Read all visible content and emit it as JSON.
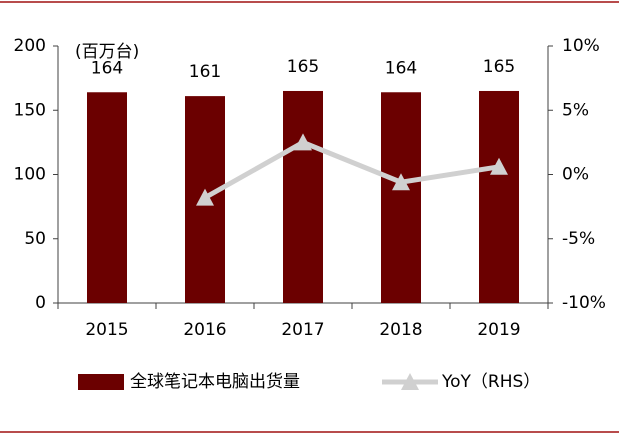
{
  "chart_data": {
    "type": "bar",
    "unit_label": "(百万台)",
    "categories": [
      "2015",
      "2016",
      "2017",
      "2018",
      "2019"
    ],
    "series": [
      {
        "name": "全球笔记本电脑出货量",
        "color": "#6b0000",
        "values": [
          164,
          161,
          165,
          164,
          165
        ]
      },
      {
        "name": "YoY（RHS）",
        "type": "line",
        "axis": "y2",
        "color": "#d0d0d0",
        "values": [
          null,
          -1.8,
          2.5,
          -0.6,
          0.6
        ]
      }
    ],
    "ylim": [
      0,
      200
    ],
    "yticks": [
      0,
      50,
      100,
      150,
      200
    ],
    "y2lim": [
      -10,
      10
    ],
    "y2ticks": [
      {
        "value": -10,
        "label": "-10%"
      },
      {
        "value": -5,
        "label": "-5%"
      },
      {
        "value": 0,
        "label": "0%"
      },
      {
        "value": 5,
        "label": "5%"
      },
      {
        "value": 10,
        "label": "10%"
      }
    ],
    "grid": false
  }
}
